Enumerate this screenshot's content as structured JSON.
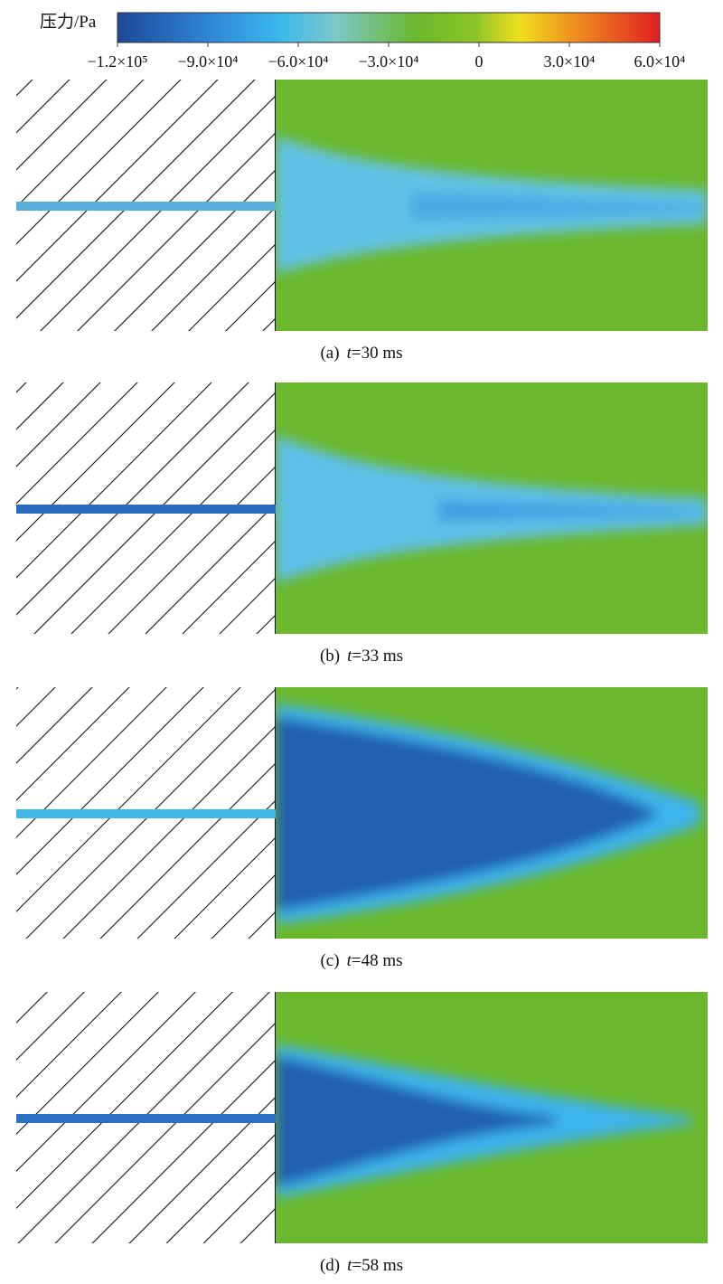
{
  "colorbar": {
    "label": "压力/Pa",
    "range": [
      -120000,
      60000
    ],
    "ticks": [
      {
        "value": -120000,
        "label": "−1.2×10⁵"
      },
      {
        "value": -90000,
        "label": "−9.0×10⁴"
      },
      {
        "value": -60000,
        "label": "−6.0×10⁴"
      },
      {
        "value": -30000,
        "label": "−3.0×10⁴"
      },
      0,
      {
        "value": 30000,
        "label": "3.0×10⁴"
      },
      {
        "value": 60000,
        "label": "6.0×10⁴"
      }
    ]
  },
  "panels": [
    {
      "label": "(a)",
      "variable": "t",
      "time": "=30 ms"
    },
    {
      "label": "(b)",
      "variable": "t",
      "time": "=33 ms"
    },
    {
      "label": "(c)",
      "variable": "t",
      "time": "=48 ms"
    },
    {
      "label": "(d)",
      "variable": "t",
      "time": "=58 ms"
    }
  ]
}
